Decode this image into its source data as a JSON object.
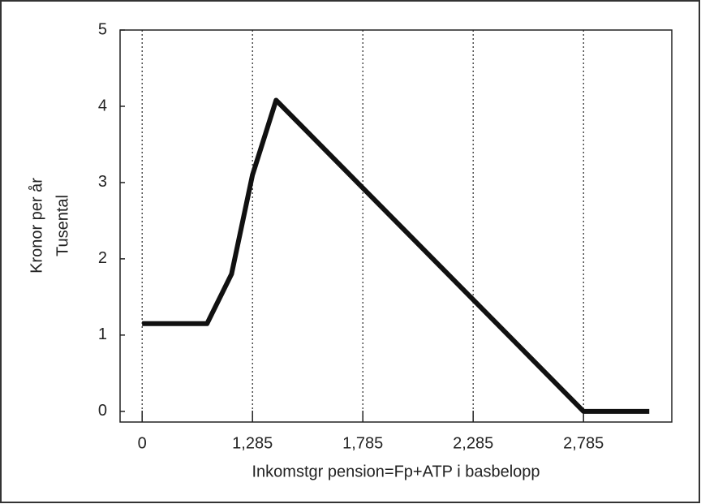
{
  "chart_data": {
    "type": "line",
    "ylabel": [
      "Kronor per år",
      "Tusental"
    ],
    "xlabel": "Inkomstgr pension=Fp+ATP i basbelopp",
    "x": [
      0.785,
      1.079,
      1.19,
      1.285,
      1.392,
      2.785,
      3.083
    ],
    "series": [
      {
        "color": "#111111",
        "values": [
          1.15,
          1.15,
          1.8,
          3.1,
          4.08,
          0,
          0
        ]
      }
    ],
    "xlim": [
      0.685,
      3.185
    ],
    "ylim": [
      -0.14,
      5
    ],
    "xticks": [
      {
        "value": 0.785,
        "label": "0"
      },
      {
        "value": 1.285,
        "label": "1,285"
      },
      {
        "value": 1.785,
        "label": "1,785"
      },
      {
        "value": 2.285,
        "label": "2,285"
      },
      {
        "value": 2.785,
        "label": "2,785"
      }
    ],
    "yticks": [
      0,
      1,
      2,
      3,
      4,
      5
    ],
    "grid": true
  }
}
